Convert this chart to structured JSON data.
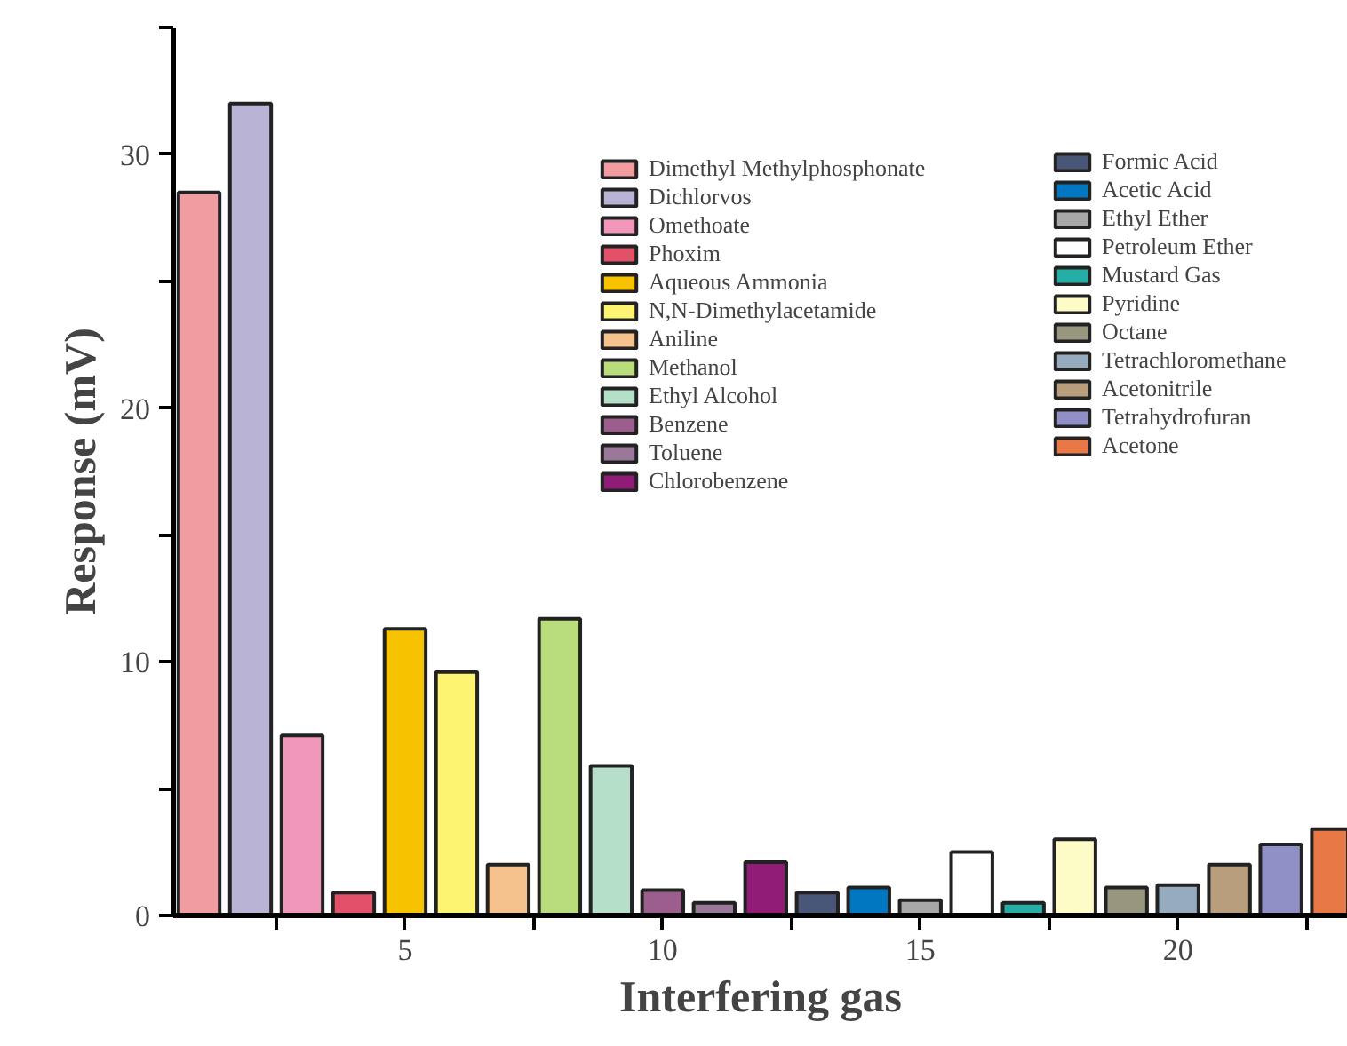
{
  "chart_data": {
    "type": "bar",
    "xlabel": "Interfering gas",
    "ylabel": "Response (mV)",
    "xlim": [
      0.5,
      23.3
    ],
    "ylim": [
      0,
      35
    ],
    "xticks": [
      {
        "value": 2.5,
        "label": null
      },
      5,
      {
        "value": 7.5,
        "label": null
      },
      10,
      {
        "value": 12.5,
        "label": null
      },
      15,
      {
        "value": 17.5,
        "label": null
      },
      20,
      {
        "value": 22.5,
        "label": null
      }
    ],
    "yticks": [
      0,
      {
        "value": 5,
        "label": null
      },
      10,
      {
        "value": 15,
        "label": null
      },
      20,
      {
        "value": 25,
        "label": null
      },
      30,
      {
        "value": 35,
        "label": null
      }
    ],
    "grid": false,
    "legend": "top right",
    "series": [
      {
        "name": "Dimethyl Methylphosphonate",
        "color": "#f09ca0",
        "x": [
          1
        ],
        "values": [
          28.5
        ]
      },
      {
        "name": "Dichlorvos",
        "color": "#b9b3d6",
        "x": [
          2
        ],
        "values": [
          32.0
        ]
      },
      {
        "name": "Omethoate",
        "color": "#f097bb",
        "x": [
          3
        ],
        "values": [
          7.1
        ]
      },
      {
        "name": "Phoxim",
        "color": "#e2506a",
        "x": [
          4
        ],
        "values": [
          0.9
        ]
      },
      {
        "name": "Aqueous Ammonia",
        "color": "#f7c300",
        "x": [
          5
        ],
        "values": [
          11.3
        ]
      },
      {
        "name": "N,N-Dimethylacetamide",
        "color": "#fdf572",
        "x": [
          6
        ],
        "values": [
          9.6
        ]
      },
      {
        "name": "Aniline",
        "color": "#f5c28e",
        "x": [
          7
        ],
        "values": [
          2.0
        ]
      },
      {
        "name": "Methanol",
        "color": "#b9dd7c",
        "x": [
          8
        ],
        "values": [
          11.7
        ]
      },
      {
        "name": "Ethyl Alcohol",
        "color": "#b5dfc8",
        "x": [
          9
        ],
        "values": [
          5.9
        ]
      },
      {
        "name": "Benzene",
        "color": "#9c5e8c",
        "x": [
          10
        ],
        "values": [
          1.0
        ]
      },
      {
        "name": "Toluene",
        "color": "#9a7899",
        "x": [
          11
        ],
        "values": [
          0.5
        ]
      },
      {
        "name": "Chlorobenzene",
        "color": "#911c78",
        "x": [
          12
        ],
        "values": [
          2.1
        ]
      },
      {
        "name": "Formic Acid",
        "color": "#485678",
        "x": [
          13
        ],
        "values": [
          0.9
        ]
      },
      {
        "name": "Acetic Acid",
        "color": "#0077c0",
        "x": [
          14
        ],
        "values": [
          1.1
        ]
      },
      {
        "name": "Ethyl Ether",
        "color": "#a8a8a8",
        "x": [
          15
        ],
        "values": [
          0.6
        ]
      },
      {
        "name": "Petroleum Ether",
        "color": "#ffffff",
        "x": [
          16
        ],
        "values": [
          2.5
        ]
      },
      {
        "name": "Mustard Gas",
        "color": "#24aea5",
        "x": [
          17
        ],
        "values": [
          0.5
        ]
      },
      {
        "name": "Pyridine",
        "color": "#fefcc6",
        "x": [
          18
        ],
        "values": [
          3.0
        ]
      },
      {
        "name": "Octane",
        "color": "#999680",
        "x": [
          19
        ],
        "values": [
          1.1
        ]
      },
      {
        "name": "Tetrachloromethane",
        "color": "#96acbe",
        "x": [
          20
        ],
        "values": [
          1.2
        ]
      },
      {
        "name": "Acetonitrile",
        "color": "#b99e7d",
        "x": [
          21
        ],
        "values": [
          2.0
        ]
      },
      {
        "name": "Tetrahydrofuran",
        "color": "#9090c6",
        "x": [
          22
        ],
        "values": [
          2.8
        ]
      },
      {
        "name": "Acetone",
        "color": "#e87946",
        "x": [
          23
        ],
        "values": [
          3.4
        ]
      }
    ]
  }
}
